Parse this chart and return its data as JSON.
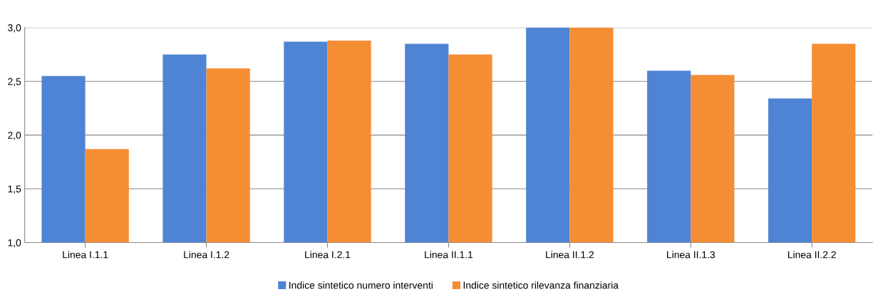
{
  "chart_data": {
    "type": "bar",
    "categories": [
      "Linea I.1.1",
      "Linea I.1.2",
      "Linea I.2.1",
      "Linea II.1.1",
      "Linea II.1.2",
      "Linea II.1.3",
      "Linea II.2.2"
    ],
    "series": [
      {
        "name": "Indice sintetico numero interventi",
        "color": "#4f84d4",
        "values": [
          2.55,
          2.75,
          2.87,
          2.85,
          3.0,
          2.6,
          2.34
        ]
      },
      {
        "name": "Indice sintetico rilevanza finanziaria",
        "color": "#f58d35",
        "values": [
          1.87,
          2.62,
          2.88,
          2.75,
          3.0,
          2.56,
          2.85
        ]
      }
    ],
    "ylim": [
      1.0,
      3.0
    ],
    "yticks": [
      {
        "value": 1.0,
        "label": "1,0"
      },
      {
        "value": 1.5,
        "label": "1,5"
      },
      {
        "value": 2.0,
        "label": "2,0"
      },
      {
        "value": 2.5,
        "label": "2,5"
      },
      {
        "value": 3.0,
        "label": "3,0"
      }
    ],
    "grid": "y",
    "legend": "bottom"
  }
}
